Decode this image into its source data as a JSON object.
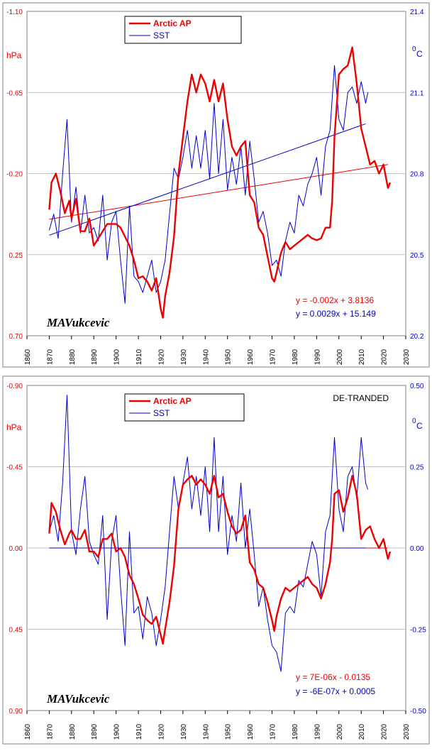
{
  "signature": "MAVukcevic",
  "colors": {
    "arctic": "#ee0000",
    "sst": "#0000cc",
    "grid": "#c0c0c0",
    "trend_red": "#ee0000",
    "trend_blue": "#0000cc"
  },
  "chart_data": [
    {
      "type": "line",
      "title": "",
      "xlim": [
        1860,
        2030
      ],
      "x_ticks": [
        "1860",
        "1870",
        "1880",
        "1890",
        "1900",
        "1910",
        "1920",
        "1930",
        "1940",
        "1950",
        "1960",
        "1970",
        "1980",
        "1990",
        "2000",
        "2010",
        "2020",
        "2030"
      ],
      "left_axis": {
        "label": "hPa",
        "inverted": true,
        "lim": [
          0.7,
          -1.1
        ],
        "ticks": [
          "-1.10",
          "-0.65",
          "-0.20",
          "0.25",
          "0.70"
        ]
      },
      "right_axis": {
        "label": "0C",
        "label_main": "0",
        "label_sub": "C",
        "lim": [
          20.2,
          21.4
        ],
        "ticks": [
          "21.4",
          "21.1",
          "20.8",
          "20.5",
          "20.2"
        ]
      },
      "legend": {
        "placement": "top-left",
        "arctic": "Arctic AP",
        "sst": "SST"
      },
      "annotation": "",
      "equations": {
        "arctic": "y = -0.002x + 3.8136",
        "sst": "y = 0.0029x + 15.149"
      },
      "series": [
        {
          "name": "Arctic AP",
          "axis": "left",
          "color": "#ee0000",
          "x": [
            1870,
            1871,
            1873,
            1875,
            1877,
            1879,
            1880,
            1882,
            1884,
            1886,
            1888,
            1890,
            1892,
            1894,
            1896,
            1898,
            1900,
            1902,
            1904,
            1906,
            1908,
            1910,
            1912,
            1914,
            1916,
            1918,
            1920,
            1921,
            1922,
            1924,
            1926,
            1928,
            1930,
            1932,
            1934,
            1936,
            1938,
            1940,
            1942,
            1944,
            1946,
            1948,
            1950,
            1952,
            1954,
            1956,
            1958,
            1960,
            1962,
            1964,
            1966,
            1968,
            1970,
            1971,
            1972,
            1974,
            1976,
            1978,
            1980,
            1982,
            1984,
            1986,
            1988,
            1990,
            1992,
            1994,
            1996,
            1997,
            1998,
            2000,
            2002,
            2004,
            2006,
            2008,
            2010,
            2012,
            2014,
            2016,
            2018,
            2020,
            2022,
            2023
          ],
          "y": [
            0.0,
            -0.15,
            -0.2,
            -0.1,
            0.02,
            -0.05,
            0.05,
            -0.06,
            0.12,
            0.12,
            0.05,
            0.2,
            0.16,
            0.12,
            0.08,
            0.08,
            0.08,
            0.1,
            0.15,
            0.2,
            0.28,
            0.38,
            0.37,
            0.4,
            0.45,
            0.38,
            0.55,
            0.6,
            0.48,
            0.35,
            0.15,
            -0.2,
            -0.4,
            -0.6,
            -0.75,
            -0.65,
            -0.75,
            -0.7,
            -0.6,
            -0.72,
            -0.6,
            -0.7,
            -0.5,
            -0.35,
            -0.3,
            -0.35,
            -0.38,
            -0.08,
            -0.04,
            0.1,
            0.14,
            0.26,
            0.38,
            0.4,
            0.35,
            0.24,
            0.18,
            0.22,
            0.2,
            0.18,
            0.16,
            0.14,
            0.16,
            0.17,
            0.16,
            0.1,
            0.1,
            -0.05,
            -0.4,
            -0.75,
            -0.78,
            -0.8,
            -0.9,
            -0.7,
            -0.45,
            -0.35,
            -0.25,
            -0.27,
            -0.2,
            -0.25,
            -0.12,
            -0.15
          ]
        },
        {
          "name": "SST",
          "axis": "right",
          "color": "#0000cc",
          "x": [
            1870,
            1872,
            1874,
            1876,
            1878,
            1880,
            1882,
            1884,
            1886,
            1888,
            1890,
            1892,
            1894,
            1896,
            1898,
            1900,
            1902,
            1904,
            1906,
            1908,
            1910,
            1912,
            1914,
            1916,
            1918,
            1920,
            1922,
            1924,
            1926,
            1928,
            1930,
            1932,
            1934,
            1936,
            1938,
            1940,
            1942,
            1944,
            1946,
            1948,
            1950,
            1952,
            1954,
            1956,
            1958,
            1960,
            1962,
            1964,
            1966,
            1968,
            1970,
            1972,
            1974,
            1976,
            1978,
            1980,
            1982,
            1984,
            1986,
            1988,
            1990,
            1992,
            1994,
            1996,
            1998,
            2000,
            2002,
            2004,
            2006,
            2008,
            2010,
            2012,
            2013
          ],
          "y": [
            20.59,
            20.65,
            20.56,
            20.8,
            21.0,
            20.62,
            20.75,
            20.58,
            20.72,
            20.58,
            20.6,
            20.55,
            20.72,
            20.48,
            20.62,
            20.66,
            20.48,
            20.32,
            20.68,
            20.42,
            20.4,
            20.36,
            20.42,
            20.48,
            20.36,
            20.4,
            20.48,
            20.65,
            20.82,
            20.78,
            20.86,
            20.96,
            20.82,
            20.94,
            20.82,
            20.96,
            20.78,
            21.06,
            20.8,
            21.0,
            20.74,
            20.86,
            20.76,
            20.9,
            20.72,
            20.92,
            20.78,
            20.62,
            20.66,
            20.58,
            20.46,
            20.48,
            20.42,
            20.55,
            20.62,
            20.58,
            20.72,
            20.68,
            20.76,
            20.8,
            20.86,
            20.72,
            20.9,
            20.96,
            21.2,
            21.0,
            20.96,
            21.1,
            21.12,
            21.06,
            21.14,
            21.06,
            21.1
          ]
        }
      ],
      "trend_lines": [
        {
          "name": "arctic-trend",
          "axis": "left",
          "x": [
            1870,
            2022
          ],
          "y": [
            0.0536,
            -0.2504
          ]
        },
        {
          "name": "sst-trend",
          "axis": "right",
          "x": [
            1870,
            2012
          ],
          "y": [
            20.572,
            20.984
          ]
        }
      ]
    },
    {
      "type": "line",
      "title": "",
      "xlim": [
        1860,
        2030
      ],
      "x_ticks": [
        "1860",
        "1870",
        "1880",
        "1890",
        "1900",
        "1910",
        "1920",
        "1930",
        "1940",
        "1950",
        "1960",
        "1970",
        "1980",
        "1990",
        "2000",
        "2010",
        "2020",
        "2030"
      ],
      "left_axis": {
        "label": "hPa",
        "inverted": true,
        "lim": [
          0.9,
          -0.9
        ],
        "ticks": [
          "-0.90",
          "-0.45",
          "0.00",
          "0.45",
          "0.90"
        ]
      },
      "right_axis": {
        "label": "0C",
        "label_main": "0",
        "label_sub": "C",
        "lim": [
          -0.5,
          0.5
        ],
        "ticks": [
          "0.50",
          "0.25",
          "0.00",
          "-0.25",
          "-0.50"
        ]
      },
      "legend": {
        "placement": "top-left",
        "arctic": "Arctic AP",
        "sst": "SST"
      },
      "annotation": "DE-TRANDED",
      "equations": {
        "arctic": "y = 7E-06x - 0.0135",
        "sst": "y = -6E-07x + 0.0005"
      },
      "series": [
        {
          "name": "Arctic AP",
          "axis": "left",
          "color": "#ee0000",
          "x": [
            1870,
            1871,
            1873,
            1875,
            1877,
            1879,
            1880,
            1882,
            1884,
            1886,
            1888,
            1890,
            1892,
            1894,
            1896,
            1898,
            1900,
            1902,
            1904,
            1906,
            1908,
            1910,
            1912,
            1914,
            1916,
            1918,
            1920,
            1921,
            1922,
            1924,
            1926,
            1928,
            1930,
            1932,
            1934,
            1936,
            1938,
            1940,
            1942,
            1944,
            1946,
            1948,
            1950,
            1952,
            1954,
            1956,
            1958,
            1960,
            1962,
            1964,
            1966,
            1968,
            1970,
            1971,
            1972,
            1974,
            1976,
            1978,
            1980,
            1982,
            1984,
            1986,
            1988,
            1990,
            1992,
            1994,
            1996,
            1997,
            1998,
            2000,
            2002,
            2004,
            2006,
            2008,
            2010,
            2012,
            2014,
            2016,
            2018,
            2020,
            2022,
            2023
          ],
          "y": [
            -0.08,
            -0.25,
            -0.2,
            -0.1,
            -0.02,
            -0.08,
            -0.1,
            -0.05,
            -0.05,
            -0.1,
            0.02,
            0.02,
            0.05,
            -0.05,
            -0.05,
            -0.08,
            0.02,
            0.0,
            0.05,
            0.15,
            0.2,
            0.28,
            0.37,
            0.4,
            0.42,
            0.38,
            0.48,
            0.53,
            0.45,
            0.3,
            0.1,
            -0.22,
            -0.35,
            -0.38,
            -0.4,
            -0.35,
            -0.38,
            -0.35,
            -0.3,
            -0.4,
            -0.28,
            -0.3,
            -0.2,
            -0.12,
            -0.08,
            -0.1,
            -0.18,
            0.08,
            0.12,
            0.2,
            0.22,
            0.3,
            0.4,
            0.46,
            0.38,
            0.28,
            0.22,
            0.24,
            0.22,
            0.2,
            0.18,
            0.16,
            0.2,
            0.22,
            0.28,
            0.2,
            0.08,
            -0.05,
            -0.3,
            -0.32,
            -0.2,
            -0.28,
            -0.4,
            -0.3,
            -0.05,
            -0.1,
            -0.12,
            -0.05,
            0.0,
            -0.05,
            0.06,
            0.02
          ]
        },
        {
          "name": "SST",
          "axis": "right",
          "color": "#0000cc",
          "x": [
            1870,
            1872,
            1874,
            1876,
            1878,
            1880,
            1882,
            1884,
            1886,
            1888,
            1890,
            1892,
            1894,
            1896,
            1898,
            1900,
            1902,
            1904,
            1906,
            1908,
            1910,
            1912,
            1914,
            1916,
            1918,
            1920,
            1922,
            1924,
            1926,
            1928,
            1930,
            1932,
            1934,
            1936,
            1938,
            1940,
            1942,
            1944,
            1946,
            1948,
            1950,
            1952,
            1954,
            1956,
            1958,
            1960,
            1962,
            1964,
            1966,
            1968,
            1970,
            1972,
            1974,
            1976,
            1978,
            1980,
            1982,
            1984,
            1986,
            1988,
            1990,
            1992,
            1994,
            1996,
            1998,
            2000,
            2002,
            2004,
            2006,
            2008,
            2010,
            2012,
            2013
          ],
          "y": [
            0.05,
            0.1,
            0.02,
            0.2,
            0.47,
            0.05,
            -0.02,
            0.12,
            0.22,
            0.02,
            -0.02,
            -0.05,
            0.1,
            -0.22,
            0.02,
            0.1,
            -0.12,
            -0.3,
            0.05,
            -0.2,
            -0.18,
            -0.28,
            -0.15,
            -0.2,
            -0.3,
            -0.22,
            -0.12,
            0.05,
            0.22,
            0.12,
            0.2,
            0.28,
            0.12,
            0.22,
            0.1,
            0.25,
            0.05,
            0.34,
            0.05,
            0.22,
            -0.02,
            0.1,
            0.02,
            0.2,
            0.0,
            0.12,
            -0.02,
            -0.18,
            -0.12,
            -0.22,
            -0.3,
            -0.32,
            -0.38,
            -0.2,
            -0.18,
            -0.2,
            -0.1,
            -0.12,
            -0.05,
            0.02,
            -0.02,
            -0.15,
            0.05,
            0.1,
            0.34,
            0.12,
            0.05,
            0.22,
            0.25,
            0.15,
            0.34,
            0.2,
            0.18
          ]
        }
      ],
      "trend_lines": [
        {
          "name": "arctic-trend",
          "axis": "left",
          "x": [
            1870,
            2022
          ],
          "y": [
            0.0,
            0.0
          ]
        },
        {
          "name": "sst-trend",
          "axis": "right",
          "x": [
            1870,
            2012
          ],
          "y": [
            0.0,
            0.0
          ]
        }
      ]
    }
  ]
}
